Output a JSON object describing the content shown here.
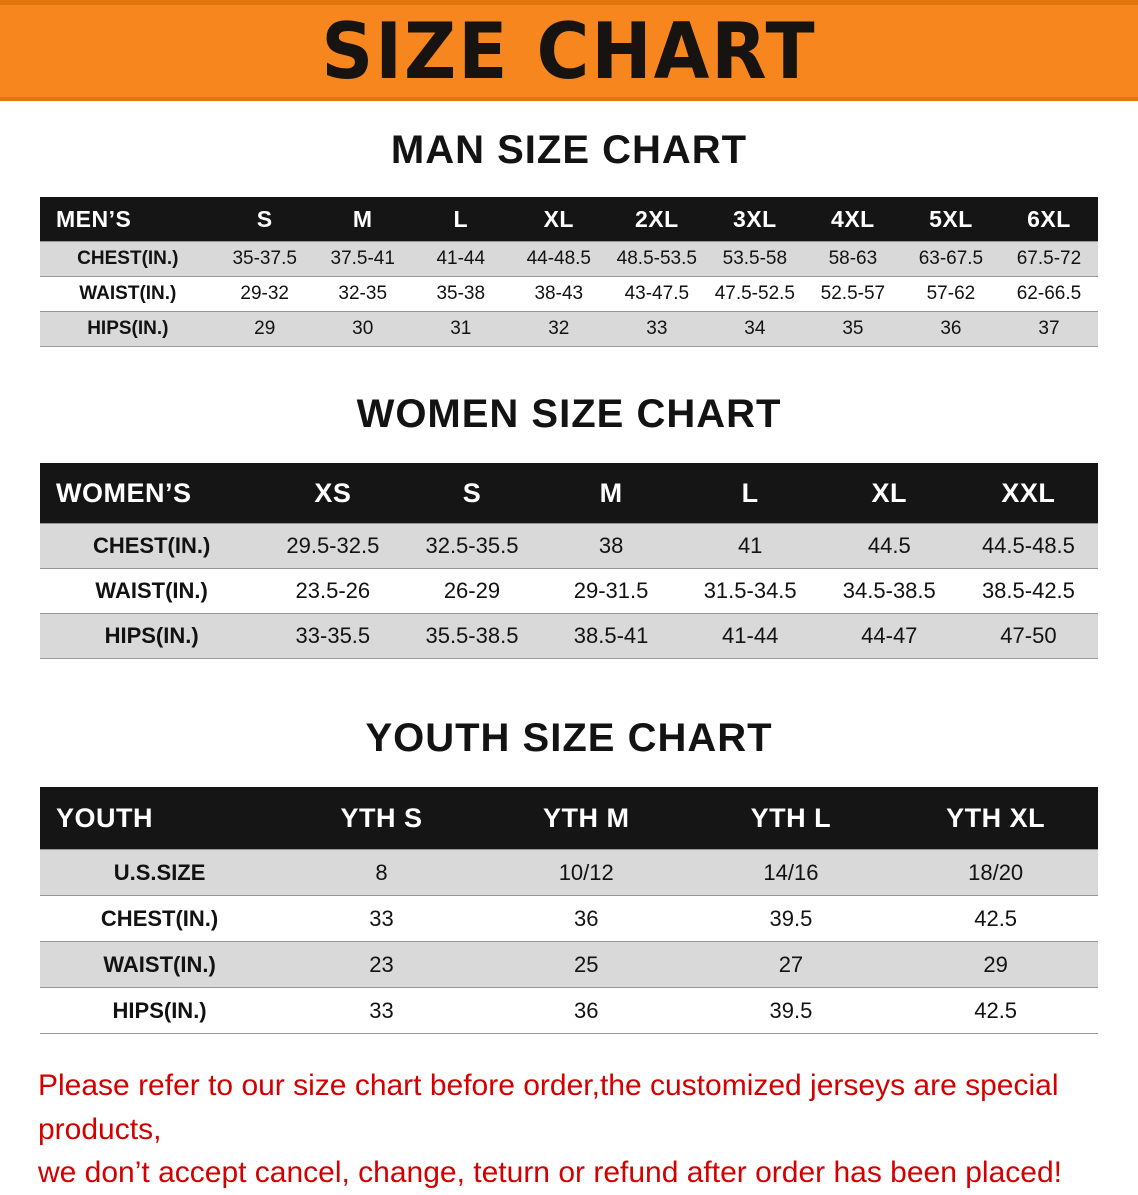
{
  "banner": {
    "title": "SIZE CHART",
    "bg_color": "#f6861d",
    "text_color": "#161311"
  },
  "sections": [
    {
      "heading": "MAN SIZE CHART",
      "table": {
        "header": [
          "MEN’S",
          "S",
          "M",
          "L",
          "XL",
          "2XL",
          "3XL",
          "4XL",
          "5XL",
          "6XL"
        ],
        "rows": [
          {
            "label": "CHEST(IN.)",
            "values": [
              "35-37.5",
              "37.5-41",
              "41-44",
              "44-48.5",
              "48.5-53.5",
              "53.5-58",
              "58-63",
              "63-67.5",
              "67.5-72"
            ]
          },
          {
            "label": "WAIST(IN.)",
            "values": [
              "29-32",
              "32-35",
              "35-38",
              "38-43",
              "43-47.5",
              "47.5-52.5",
              "52.5-57",
              "57-62",
              "62-66.5"
            ]
          },
          {
            "label": "HIPS(IN.)",
            "values": [
              "29",
              "30",
              "31",
              "32",
              "33",
              "34",
              "35",
              "36",
              "37"
            ]
          }
        ]
      }
    },
    {
      "heading": "WOMEN SIZE CHART",
      "table": {
        "header": [
          "WOMEN’S",
          "XS",
          "S",
          "M",
          "L",
          "XL",
          "XXL"
        ],
        "rows": [
          {
            "label": "CHEST(IN.)",
            "values": [
              "29.5-32.5",
              "32.5-35.5",
              "38",
              "41",
              "44.5",
              "44.5-48.5"
            ]
          },
          {
            "label": "WAIST(IN.)",
            "values": [
              "23.5-26",
              "26-29",
              "29-31.5",
              "31.5-34.5",
              "34.5-38.5",
              "38.5-42.5"
            ]
          },
          {
            "label": "HIPS(IN.)",
            "values": [
              "33-35.5",
              "35.5-38.5",
              "38.5-41",
              "41-44",
              "44-47",
              "47-50"
            ]
          }
        ]
      }
    },
    {
      "heading": "YOUTH SIZE CHART",
      "table": {
        "header": [
          "YOUTH",
          "YTH S",
          "YTH M",
          "YTH L",
          "YTH XL"
        ],
        "rows": [
          {
            "label": "U.S.SIZE",
            "values": [
              "8",
              "10/12",
              "14/16",
              "18/20"
            ]
          },
          {
            "label": "CHEST(IN.)",
            "values": [
              "33",
              "36",
              "39.5",
              "42.5"
            ]
          },
          {
            "label": "WAIST(IN.)",
            "values": [
              "23",
              "25",
              "27",
              "29"
            ]
          },
          {
            "label": "HIPS(IN.)",
            "values": [
              "33",
              "36",
              "39.5",
              "42.5"
            ]
          }
        ]
      }
    }
  ],
  "footer": {
    "line1": "Please refer to our size chart before order,the customized jerseys are special products,",
    "line2": "we don’t accept cancel, change, teturn or refund after order has been placed!",
    "text_color": "#d40000"
  }
}
